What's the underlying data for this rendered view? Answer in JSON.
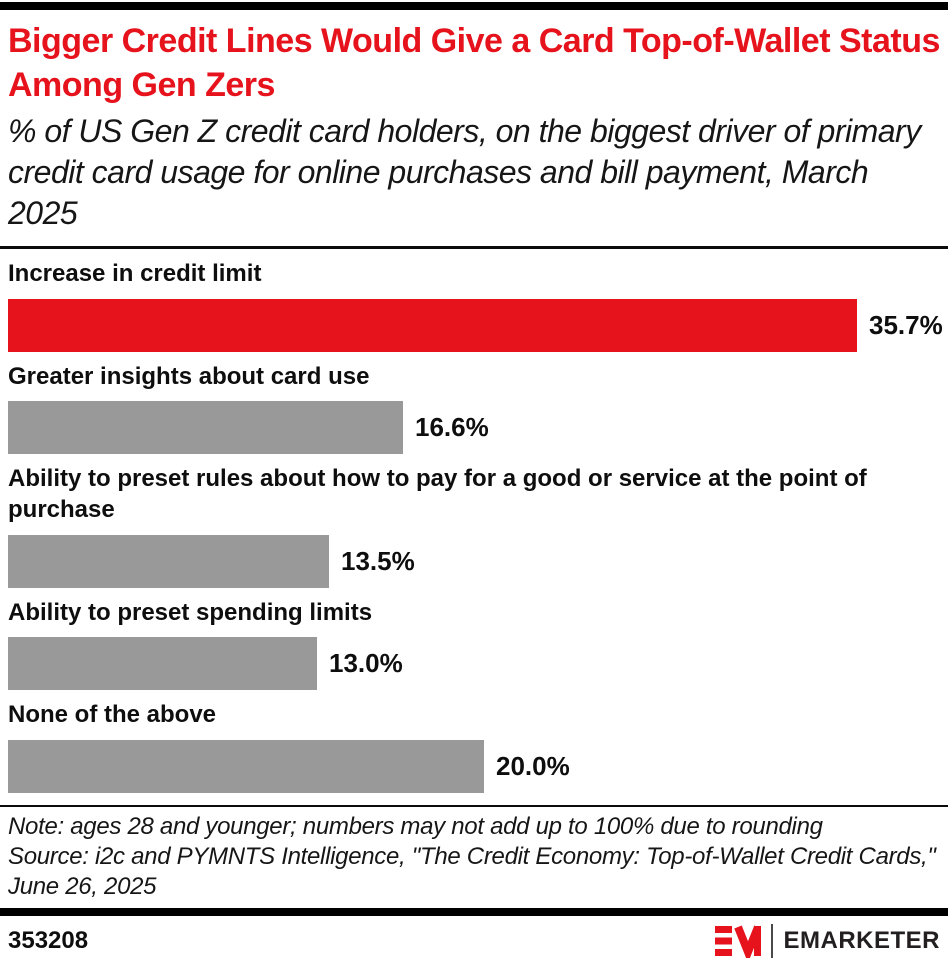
{
  "chart_data": {
    "type": "bar",
    "orientation": "horizontal",
    "title": "Bigger Credit Lines Would Give a Card Top-of-Wallet Status Among Gen Zers",
    "subtitle": "% of US Gen Z credit card holders, on the biggest driver of primary credit card usage for online purchases and bill payment, March 2025",
    "categories": [
      "Increase in credit limit",
      "Greater insights about card use",
      "Ability to preset rules about how to pay for a good or service at the point of purchase",
      "Ability to preset spending limits",
      "None of the above"
    ],
    "values": [
      35.7,
      16.6,
      13.5,
      13.0,
      20.0
    ],
    "value_labels": [
      "35.7%",
      "16.6%",
      "13.5%",
      "13.0%",
      "20.0%"
    ],
    "bar_colors": [
      "#E6121C",
      "#999999",
      "#999999",
      "#999999",
      "#999999"
    ],
    "xlim": [
      0,
      39.2
    ],
    "grid": false,
    "legend": "none",
    "data_label_position": "right-of-bar"
  },
  "colors": {
    "accent_red": "#E6121C",
    "bar_gray": "#999999",
    "text_black": "#111111"
  },
  "notes": {
    "note_line": "Note: ages 28 and younger; numbers may not add up to 100% due to rounding",
    "source_line": "Source: i2c and PYMNTS Intelligence, \"The Credit Economy: Top-of-Wallet Credit Cards,\" June 26, 2025"
  },
  "footer": {
    "chart_id": "353208",
    "brand": "EMARKETER"
  }
}
